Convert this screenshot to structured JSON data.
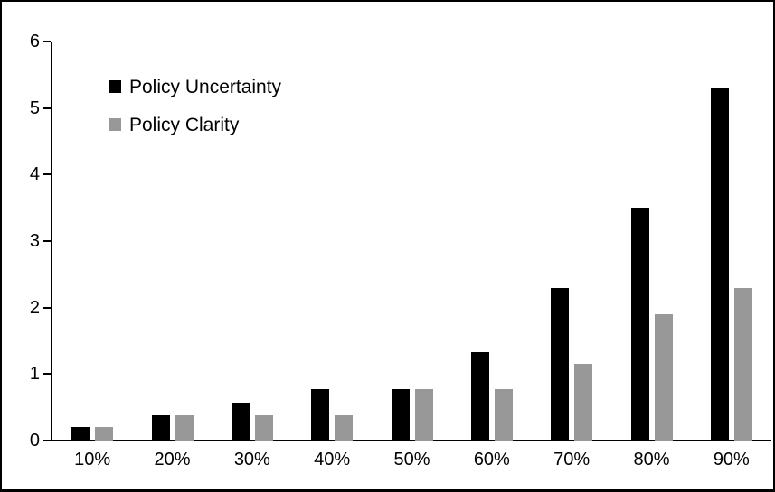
{
  "chart_data": {
    "type": "bar",
    "title": "",
    "xlabel": "",
    "ylabel": "",
    "categories": [
      "10%",
      "20%",
      "30%",
      "40%",
      "50%",
      "60%",
      "70%",
      "80%",
      "90%"
    ],
    "series": [
      {
        "name": "Policy Uncertainty",
        "color": "#000000",
        "values": [
          0.2,
          0.38,
          0.57,
          0.77,
          0.77,
          1.33,
          2.3,
          3.5,
          5.3
        ]
      },
      {
        "name": "Policy Clarity",
        "color": "#989898",
        "values": [
          0.2,
          0.38,
          0.38,
          0.38,
          0.77,
          0.77,
          1.15,
          1.9,
          2.3
        ]
      }
    ],
    "ylim": [
      0,
      6
    ],
    "ytick_step": 1,
    "ytick_labels": [
      "0",
      "1",
      "2",
      "3",
      "4",
      "5",
      "6"
    ],
    "grid": false,
    "legend_position": "upper-left-inside",
    "axis_color": "#000000",
    "background_color": "#ffffff"
  }
}
